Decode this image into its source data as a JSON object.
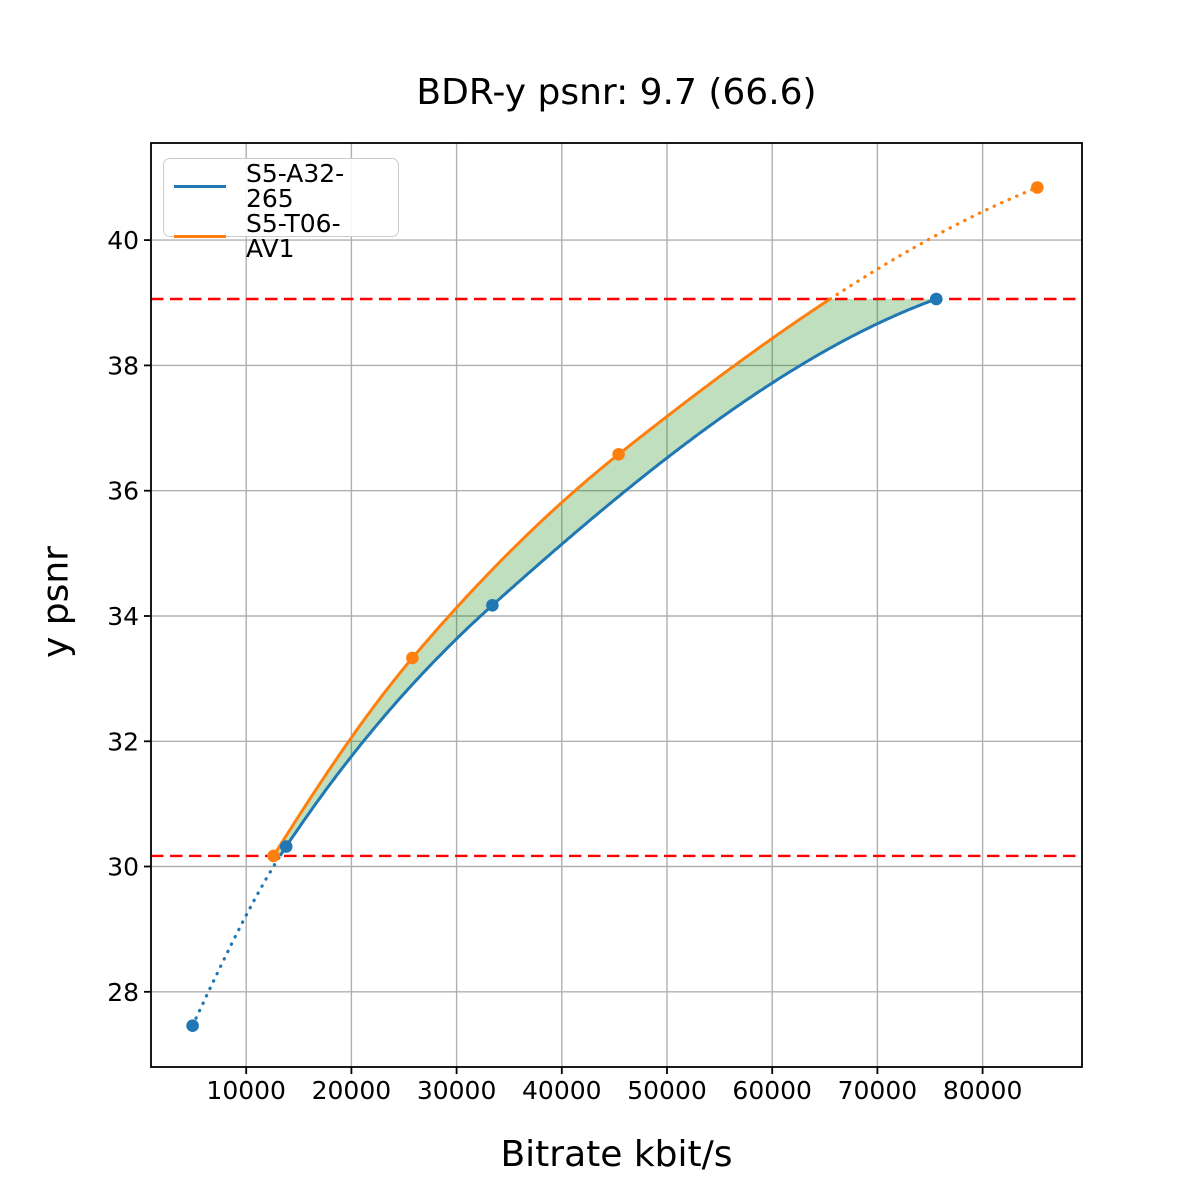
{
  "chart_data": {
    "type": "line",
    "title": "BDR-y psnr: 9.7 (66.6)",
    "xlabel": "Bitrate kbit/s",
    "ylabel": "y psnr",
    "xlim": [
      950,
      89450
    ],
    "ylim": [
      26.8,
      41.55
    ],
    "x_ticks": [
      10000,
      20000,
      30000,
      40000,
      50000,
      60000,
      70000,
      80000
    ],
    "y_ticks": [
      28,
      30,
      32,
      34,
      36,
      38,
      40
    ],
    "grid": true,
    "grid_color": "#b0b0b0",
    "legend_position": "upper left",
    "series": [
      {
        "name": "S5-A32-265",
        "color": "#1f77b4",
        "x": [
          4900,
          13800,
          33400,
          75600
        ],
        "y": [
          27.46,
          30.32,
          34.17,
          39.06
        ],
        "marker": "circle",
        "note": "dotted outside overlap region, solid inside"
      },
      {
        "name": "S5-T06-AV1",
        "color": "#ff7f0e",
        "x": [
          12600,
          25800,
          45400,
          85200
        ],
        "y": [
          30.17,
          33.33,
          36.58,
          40.84
        ],
        "marker": "circle",
        "note": "dotted outside overlap region, solid inside"
      }
    ],
    "overlap_region": {
      "psnr_low": 30.17,
      "psnr_high": 39.06,
      "boundary_style": "dashed",
      "boundary_color": "#ff0000",
      "fill_color": "#008000",
      "fill_opacity": 0.25
    }
  }
}
